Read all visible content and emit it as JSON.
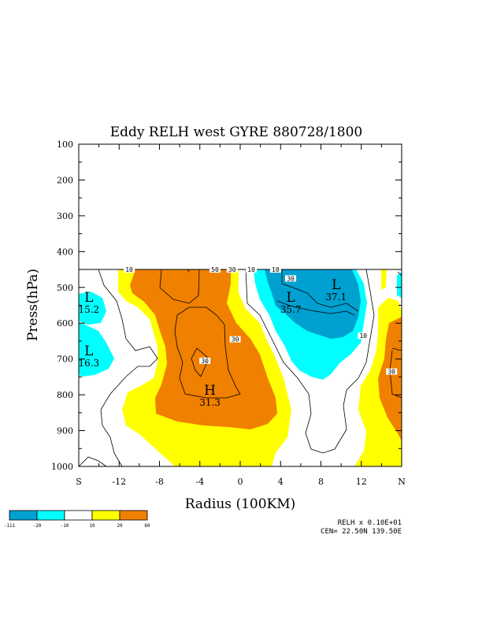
{
  "chart_data": {
    "type": "filled-contour",
    "title": "Eddy RELH west GYRE 880728/1800",
    "xlabel": "Radius (100KM)",
    "ylabel": "Press(hPa)",
    "x_ticks": [
      "S",
      "-12",
      "-8",
      "-4",
      "0",
      "4",
      "8",
      "12",
      "N"
    ],
    "x_tick_values": [
      -16,
      -12,
      -8,
      -4,
      0,
      4,
      8,
      12,
      16
    ],
    "xlim": [
      -16,
      16
    ],
    "y_ticks": [
      "100",
      "200",
      "300",
      "400",
      "500",
      "600",
      "700",
      "800",
      "900",
      "1000"
    ],
    "y_tick_values": [
      100,
      200,
      300,
      400,
      500,
      600,
      700,
      800,
      900,
      1000
    ],
    "ylim": [
      100,
      1000
    ],
    "data_top_hPa": 450,
    "contour_interval": 10,
    "shading_levels": [
      {
        "label": "-111",
        "color": "#00a0d0"
      },
      {
        "label": "-20",
        "color": "#00ffff"
      },
      {
        "label": "-10",
        "color": "#ffffff"
      },
      {
        "label": "10",
        "color": "#ffff00"
      },
      {
        "label": "20",
        "color": "#f08000"
      },
      {
        "label": "60",
        "color": null
      }
    ],
    "extrema": [
      {
        "type": "L",
        "value": "15.2",
        "x": -15.0,
        "p": 540
      },
      {
        "type": "L",
        "value": "16.3",
        "x": -15.0,
        "p": 690
      },
      {
        "type": "H",
        "value": "31.3",
        "x": -3.0,
        "p": 800
      },
      {
        "type": "L",
        "value": "35.7",
        "x": 5.0,
        "p": 540
      },
      {
        "type": "L",
        "value": "37.1",
        "x": 9.5,
        "p": 505
      }
    ],
    "contour_labels": [
      {
        "text": "10",
        "x": -11.0,
        "p": 450
      },
      {
        "text": "50",
        "x": -2.5,
        "p": 450
      },
      {
        "text": "30",
        "x": -0.8,
        "p": 450
      },
      {
        "text": "10",
        "x": 1.1,
        "p": 450
      },
      {
        "text": "10",
        "x": 3.5,
        "p": 450
      },
      {
        "text": "30",
        "x": 5.0,
        "p": 475
      },
      {
        "text": "30",
        "x": -0.5,
        "p": 645
      },
      {
        "text": "30",
        "x": -3.5,
        "p": 705
      },
      {
        "text": "10",
        "x": 12.2,
        "p": 635
      },
      {
        "text": "30",
        "x": 15.0,
        "p": 735
      }
    ],
    "footer": [
      "RELH x  0.10E+01",
      "CEN= 22.50N  139.50E"
    ]
  }
}
